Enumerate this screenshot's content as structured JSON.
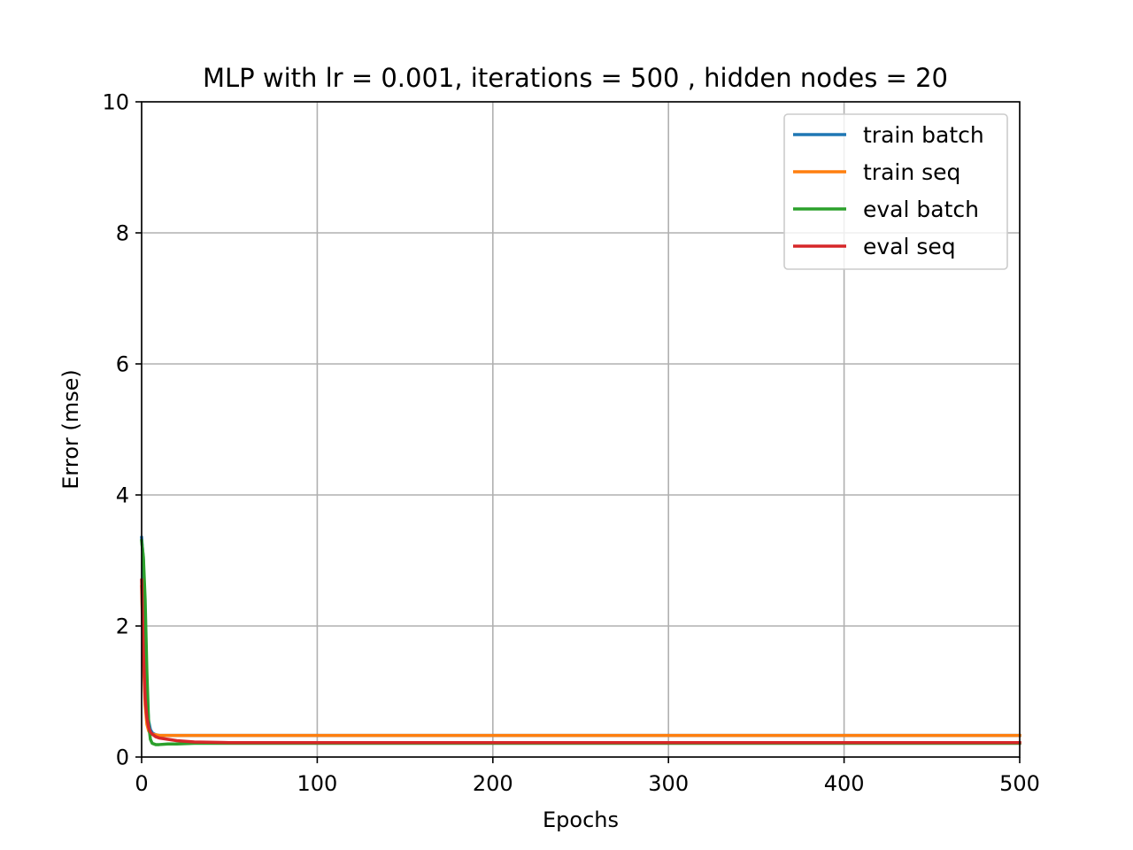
{
  "chart_data": {
    "type": "line",
    "title": "MLP with lr = 0.001, iterations = 500 , hidden nodes = 20",
    "xlabel": "Epochs",
    "ylabel": "Error (mse)",
    "xlim": [
      0,
      500
    ],
    "ylim": [
      0,
      10
    ],
    "xticks": [
      0,
      100,
      200,
      300,
      400,
      500
    ],
    "yticks": [
      0,
      2,
      4,
      6,
      8,
      10
    ],
    "grid": true,
    "legend_position": "top-right",
    "series": [
      {
        "name": "train batch",
        "color": "#1f77b4",
        "x": [
          0,
          1,
          2,
          3,
          4,
          5,
          6,
          8,
          10,
          15,
          20,
          30,
          50,
          100,
          200,
          300,
          400,
          500
        ],
        "y": [
          3.35,
          3.0,
          1.8,
          0.9,
          0.55,
          0.42,
          0.37,
          0.34,
          0.33,
          0.33,
          0.33,
          0.33,
          0.33,
          0.33,
          0.33,
          0.33,
          0.33,
          0.33
        ]
      },
      {
        "name": "train seq",
        "color": "#ff7f0e",
        "x": [
          0,
          1,
          2,
          3,
          4,
          5,
          6,
          8,
          10,
          15,
          20,
          30,
          50,
          100,
          200,
          300,
          400,
          500
        ],
        "y": [
          2.6,
          1.5,
          0.8,
          0.5,
          0.4,
          0.36,
          0.35,
          0.34,
          0.33,
          0.33,
          0.33,
          0.33,
          0.33,
          0.33,
          0.33,
          0.33,
          0.33,
          0.33
        ]
      },
      {
        "name": "eval batch",
        "color": "#2ca02c",
        "x": [
          0,
          1,
          2,
          3,
          4,
          5,
          6,
          8,
          10,
          15,
          20,
          30,
          50,
          100,
          200,
          300,
          400,
          500
        ],
        "y": [
          3.3,
          3.05,
          2.4,
          1.3,
          0.5,
          0.27,
          0.21,
          0.19,
          0.19,
          0.2,
          0.2,
          0.21,
          0.21,
          0.21,
          0.21,
          0.21,
          0.21,
          0.21
        ]
      },
      {
        "name": "eval seq",
        "color": "#d62728",
        "x": [
          0,
          1,
          2,
          3,
          4,
          5,
          6,
          8,
          10,
          15,
          20,
          30,
          50,
          100,
          200,
          300,
          400,
          500
        ],
        "y": [
          2.7,
          1.6,
          0.9,
          0.6,
          0.45,
          0.38,
          0.35,
          0.31,
          0.29,
          0.27,
          0.25,
          0.23,
          0.22,
          0.22,
          0.22,
          0.22,
          0.22,
          0.22
        ]
      }
    ]
  }
}
